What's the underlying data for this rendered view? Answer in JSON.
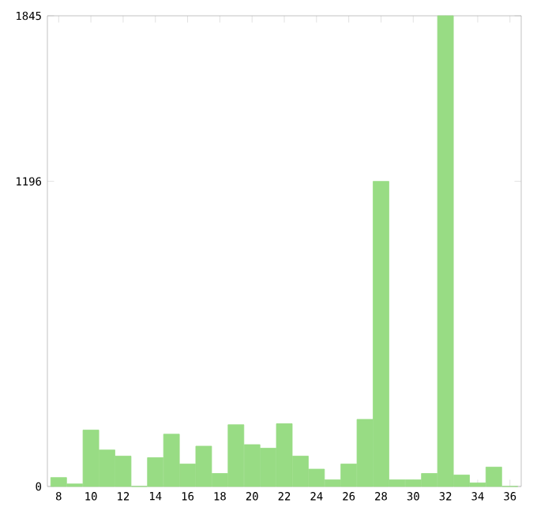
{
  "chart_data": {
    "type": "bar",
    "categories": [
      "8",
      null,
      "10",
      null,
      "12",
      null,
      "14",
      null,
      "16",
      null,
      "18",
      null,
      "20",
      null,
      "22",
      null,
      "24",
      null,
      "26",
      null,
      "28",
      null,
      "30",
      null,
      "32",
      null,
      "34",
      null,
      "36"
    ],
    "values": [
      35,
      10,
      221,
      143,
      119,
      0,
      113,
      205,
      88,
      158,
      51,
      242,
      164,
      150,
      246,
      119,
      68,
      26,
      88,
      263,
      1196,
      26,
      26,
      51,
      1845,
      45,
      14,
      76,
      0
    ],
    "color": "#98dc84",
    "ylim": [
      0,
      1845
    ],
    "yticks": [
      0,
      1196,
      1845
    ],
    "grid": false
  }
}
